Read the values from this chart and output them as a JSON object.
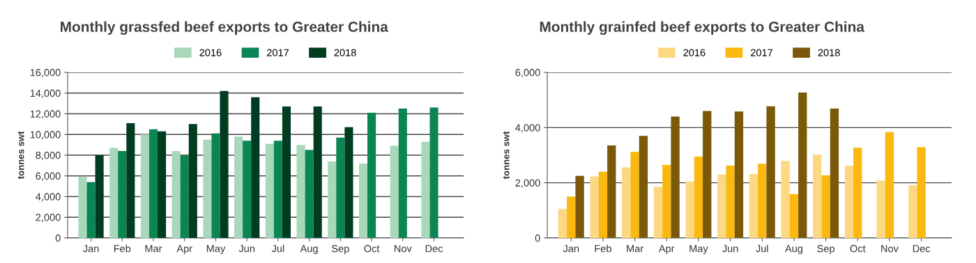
{
  "chart_data": [
    {
      "type": "bar",
      "title": "Monthly grassfed beef exports to Greater China",
      "ylabel": "tonnes swt",
      "categories": [
        "Jan",
        "Feb",
        "Mar",
        "Apr",
        "May",
        "Jun",
        "Jul",
        "Aug",
        "Sep",
        "Oct",
        "Nov",
        "Dec"
      ],
      "series": [
        {
          "name": "2016",
          "color": "#a8d8b9",
          "values": [
            5900,
            8700,
            10000,
            8400,
            9500,
            9800,
            9100,
            9000,
            7400,
            7200,
            8900,
            9300
          ]
        },
        {
          "name": "2017",
          "color": "#0b8553",
          "values": [
            5400,
            8400,
            10500,
            8000,
            10100,
            9400,
            9400,
            8500,
            9700,
            12100,
            12500,
            12600
          ]
        },
        {
          "name": "2018",
          "color": "#003d20",
          "values": [
            8000,
            11100,
            10300,
            11000,
            14200,
            13600,
            12700,
            12700,
            10700,
            null,
            null,
            null
          ]
        }
      ],
      "ylim": [
        0,
        16000
      ],
      "yticks": [
        {
          "value": 0,
          "label": "0"
        },
        {
          "value": 2000,
          "label": "2,000"
        },
        {
          "value": 4000,
          "label": "4,000"
        },
        {
          "value": 6000,
          "label": "6,000"
        },
        {
          "value": 8000,
          "label": "8,000"
        },
        {
          "value": 10000,
          "label": "10,000"
        },
        {
          "value": 12000,
          "label": "12,000"
        },
        {
          "value": 14000,
          "label": "14,000"
        },
        {
          "value": 16000,
          "label": "16,000"
        }
      ],
      "grid": "y",
      "legend": "top"
    },
    {
      "type": "bar",
      "title": "Monthly grainfed beef exports to Greater China",
      "ylabel": "tonnes swt",
      "categories": [
        "Jan",
        "Feb",
        "Mar",
        "Apr",
        "May",
        "Jun",
        "Jul",
        "Aug",
        "Sep",
        "Oct",
        "Nov",
        "Dec"
      ],
      "series": [
        {
          "name": "2016",
          "color": "#fcd882",
          "values": [
            1050,
            2230,
            2560,
            1850,
            2050,
            2300,
            2320,
            2790,
            3020,
            2620,
            2080,
            1910
          ]
        },
        {
          "name": "2017",
          "color": "#fbb811",
          "values": [
            1500,
            2400,
            3120,
            2650,
            2950,
            2620,
            2690,
            1590,
            2270,
            3270,
            3840,
            3290
          ]
        },
        {
          "name": "2018",
          "color": "#7a5a0a",
          "values": [
            2250,
            3350,
            3700,
            4400,
            4600,
            4580,
            4770,
            5270,
            4690,
            null,
            null,
            null
          ]
        }
      ],
      "ylim": [
        0,
        6000
      ],
      "yticks": [
        {
          "value": 0,
          "label": "0"
        },
        {
          "value": 2000,
          "label": "2,000"
        },
        {
          "value": 4000,
          "label": "4,000"
        },
        {
          "value": 6000,
          "label": "6,000"
        }
      ],
      "grid": "y",
      "legend": "top"
    }
  ]
}
